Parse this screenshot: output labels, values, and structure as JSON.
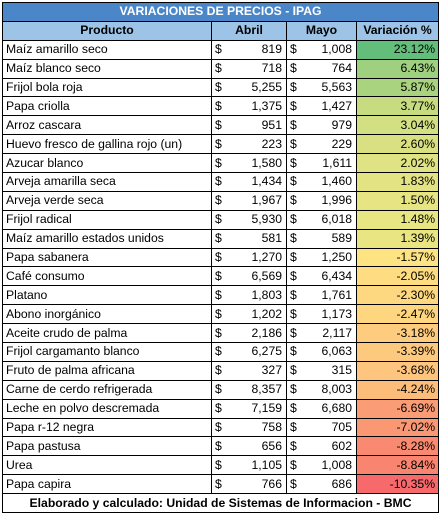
{
  "title": "VARIACIONES DE PRECIOS - IPAG",
  "headers": {
    "product": "Producto",
    "april": "Abril",
    "may": "Mayo",
    "variation": "Variación %"
  },
  "currency_symbol": "$",
  "rows": [
    {
      "product": "Maíz amarillo  seco",
      "april": "819",
      "may": "1,008",
      "variation": "23.12%",
      "color": "#63be7b"
    },
    {
      "product": "Maíz blanco  seco",
      "april": "718",
      "may": "764",
      "variation": "6.43%",
      "color": "#9fd07f"
    },
    {
      "product": "Frijol bola roja",
      "april": "5,255",
      "may": "5,563",
      "variation": "5.87%",
      "color": "#a9d37f"
    },
    {
      "product": "Papa criolla",
      "april": "1,375",
      "may": "1,427",
      "variation": "3.77%",
      "color": "#c7dc81"
    },
    {
      "product": "Arroz cascara",
      "april": "951",
      "may": "979",
      "variation": "3.04%",
      "color": "#d2df82"
    },
    {
      "product": "Huevo fresco de gallina rojo (un)",
      "april": "223",
      "may": "229",
      "variation": "2.60%",
      "color": "#d8e082"
    },
    {
      "product": "Azucar blanco",
      "april": "1,580",
      "may": "1,611",
      "variation": "2.02%",
      "color": "#e0e383"
    },
    {
      "product": "Arveja amarilla seca",
      "april": "1,434",
      "may": "1,460",
      "variation": "1.83%",
      "color": "#e3e383"
    },
    {
      "product": "Arveja verde seca",
      "april": "1,967",
      "may": "1,996",
      "variation": "1.50%",
      "color": "#e7e483"
    },
    {
      "product": "Frijol radical",
      "april": "5,930",
      "may": "6,018",
      "variation": "1.48%",
      "color": "#e8e583"
    },
    {
      "product": "Maíz amarillo estados unidos",
      "april": "581",
      "may": "589",
      "variation": "1.39%",
      "color": "#e9e583"
    },
    {
      "product": "Papa sabanera",
      "april": "1,270",
      "may": "1,250",
      "variation": "-1.57%",
      "color": "#fee382"
    },
    {
      "product": "Café consumo",
      "april": "6,569",
      "may": "6,434",
      "variation": "-2.05%",
      "color": "#fedc81"
    },
    {
      "product": "Platano",
      "april": "1,803",
      "may": "1,761",
      "variation": "-2.30%",
      "color": "#fed880"
    },
    {
      "product": "Abono inorgánico",
      "april": "1,202",
      "may": "1,173",
      "variation": "-2.47%",
      "color": "#fed680"
    },
    {
      "product": "Aceite crudo de  palma",
      "april": "2,186",
      "may": "2,117",
      "variation": "-3.18%",
      "color": "#fdcc7e"
    },
    {
      "product": "Frijol cargamanto blanco",
      "april": "6,275",
      "may": "6,063",
      "variation": "-3.39%",
      "color": "#fdc97e"
    },
    {
      "product": "Fruto de palma africana",
      "april": "327",
      "may": "315",
      "variation": "-3.68%",
      "color": "#fdc57d"
    },
    {
      "product": "Carne de cerdo refrigerada",
      "april": "8,357",
      "may": "8,003",
      "variation": "-4.24%",
      "color": "#fcbd7b"
    },
    {
      "product": "Leche en polvo descremada",
      "april": "7,159",
      "may": "6,680",
      "variation": "-6.69%",
      "color": "#fa9c75"
    },
    {
      "product": "Papa r-12 negra",
      "april": "758",
      "may": "705",
      "variation": "-7.02%",
      "color": "#fa9874"
    },
    {
      "product": "Papa pastusa",
      "april": "656",
      "may": "602",
      "variation": "-8.28%",
      "color": "#f98a71"
    },
    {
      "product": "Urea",
      "april": "1,105",
      "may": "1,008",
      "variation": "-8.84%",
      "color": "#f9846f"
    },
    {
      "product": "Papa capira",
      "april": "766",
      "may": "686",
      "variation": "-10.35%",
      "color": "#f8696b"
    }
  ],
  "footer": "Elaborado y calculado: Unidad de Sistemas de Informacion - BMC"
}
